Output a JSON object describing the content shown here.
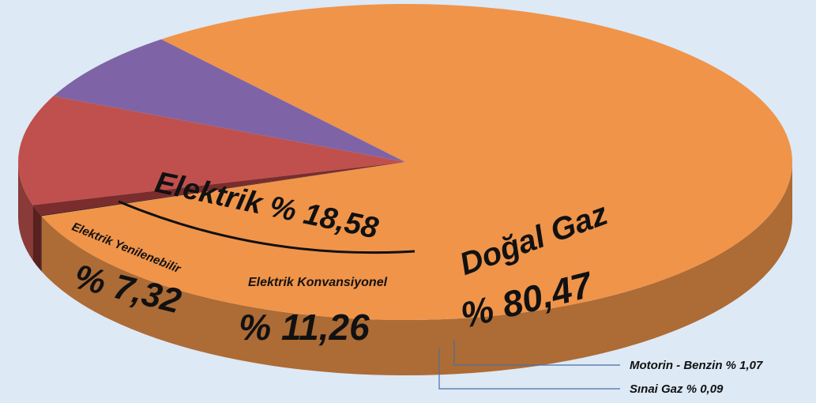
{
  "chart_data": {
    "type": "pie",
    "categories": [
      "Doğal Gaz",
      "Elektrik Yenilenebilir",
      "Elektrik Konvansiyonel",
      "Motorin - Benzin",
      "Sınai Gaz"
    ],
    "values": [
      80.47,
      7.32,
      11.26,
      1.07,
      0.09
    ],
    "value_labels": [
      "% 80,47",
      "% 7,32",
      "% 11,26",
      "% 1,07",
      "% 0,09"
    ],
    "colors": [
      "#f0944a",
      "#7e64a6",
      "#c0504d",
      "#7b2c2c",
      "#3b1818"
    ],
    "group": {
      "name": "Elektrik",
      "value": 18.58,
      "value_label": "% 18,58"
    }
  }
}
